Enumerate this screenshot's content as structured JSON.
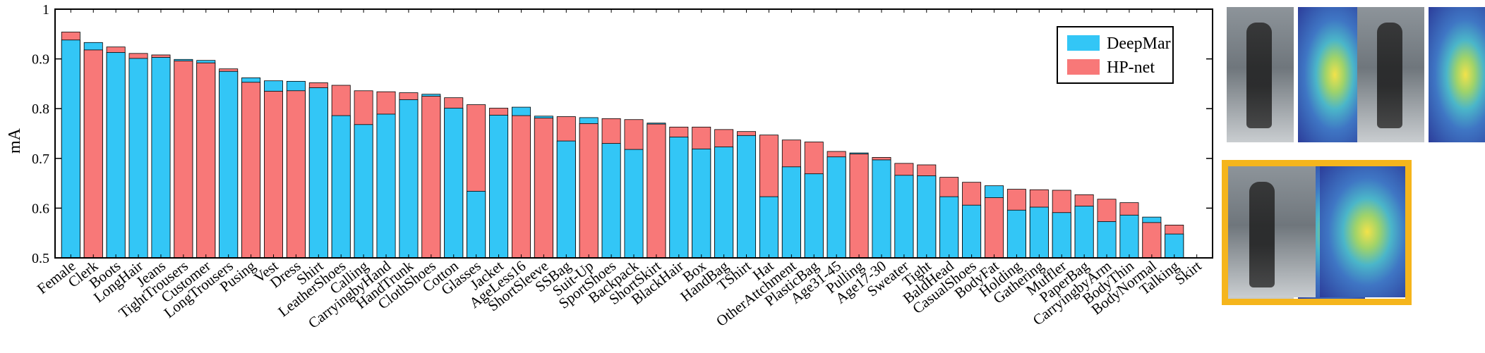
{
  "chart_data": {
    "type": "bar",
    "ylabel": "mA",
    "ylim": [
      0.5,
      1
    ],
    "yticks": [
      0.5,
      0.6,
      0.7,
      0.8,
      0.9,
      1
    ],
    "legend_placement": "top-right",
    "grid": false,
    "categories": [
      "Female",
      "Clerk",
      "Boots",
      "LongHair",
      "Jeans",
      "TightTrousers",
      "Customer",
      "LongTrousers",
      "Pusing",
      "Vest",
      "Dress",
      "Shirt",
      "LeatherShoes",
      "Calling",
      "CarryingbyHand",
      "HandTrunk",
      "ClothShoes",
      "Cotton",
      "Glasses",
      "Jacket",
      "AgeLess16",
      "ShortSleeve",
      "SSBag",
      "Suit-Up",
      "SportShoes",
      "Backpack",
      "ShortSkirt",
      "BlackHair",
      "Box",
      "HandBag",
      "TShirt",
      "Hat",
      "OtherAttchment",
      "PlasticBag",
      "Age31-45",
      "Pulling",
      "Age17-30",
      "Sweater",
      "Tight",
      "BaldHead",
      "CasualShoes",
      "BodyFat",
      "Holding",
      "Gathering",
      "Muffler",
      "PaperBag",
      "CarryingbyArm",
      "BodyThin",
      "BodyNormal",
      "Talking",
      "Skirt"
    ],
    "series": [
      {
        "name": "DeepMar",
        "color": "#33c6f6",
        "values": [
          0.938,
          0.933,
          0.913,
          0.901,
          0.903,
          0.899,
          0.897,
          0.875,
          0.862,
          0.856,
          0.855,
          0.842,
          0.786,
          0.768,
          0.789,
          0.818,
          0.829,
          0.801,
          0.634,
          0.787,
          0.803,
          0.785,
          0.735,
          0.782,
          0.73,
          0.718,
          0.771,
          0.743,
          0.719,
          0.723,
          0.746,
          0.623,
          0.683,
          0.669,
          0.703,
          0.711,
          0.697,
          0.666,
          0.665,
          0.623,
          0.606,
          0.645,
          0.596,
          0.602,
          0.591,
          0.604,
          0.573,
          0.586,
          0.582,
          0.548,
          0.5
        ]
      },
      {
        "name": "HP-net",
        "color": "#f87878",
        "values": [
          0.954,
          0.918,
          0.924,
          0.911,
          0.908,
          0.896,
          0.892,
          0.88,
          0.853,
          0.835,
          0.836,
          0.852,
          0.847,
          0.836,
          0.834,
          0.832,
          0.825,
          0.822,
          0.808,
          0.801,
          0.786,
          0.781,
          0.784,
          0.77,
          0.78,
          0.778,
          0.769,
          0.763,
          0.763,
          0.758,
          0.754,
          0.747,
          0.737,
          0.733,
          0.714,
          0.709,
          0.702,
          0.69,
          0.687,
          0.662,
          0.652,
          0.621,
          0.638,
          0.637,
          0.636,
          0.627,
          0.618,
          0.611,
          0.571,
          0.566,
          0.5
        ]
      }
    ]
  },
  "legend": {
    "items": [
      "DeepMar",
      "HP-net"
    ]
  },
  "photos": {
    "highlight_color": "#f5b51c"
  }
}
